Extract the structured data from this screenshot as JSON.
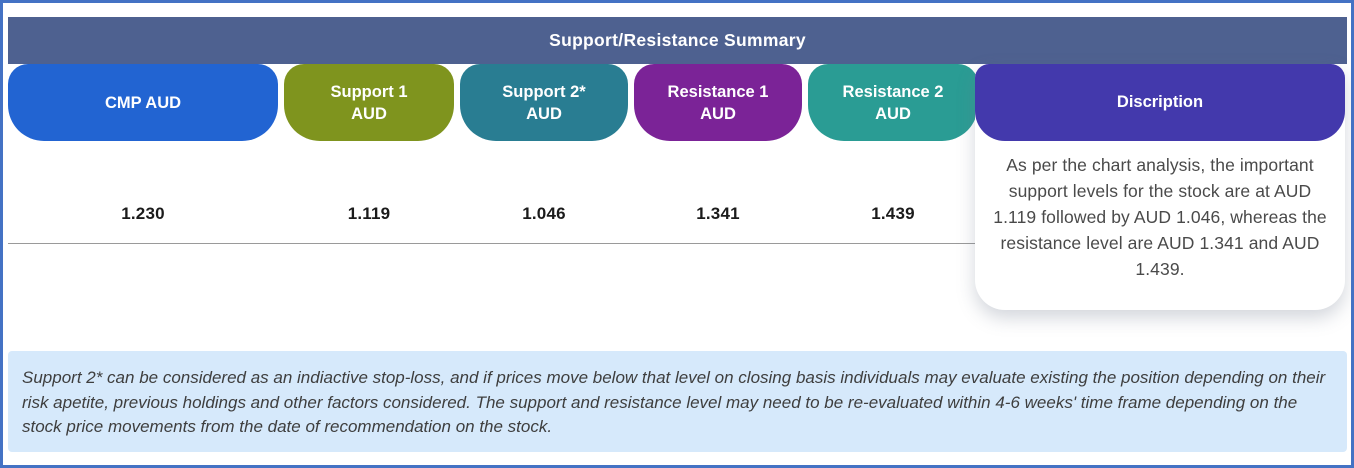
{
  "frame": {
    "border_color": "#4472C4"
  },
  "header": {
    "title": "Support/Resistance Summary",
    "bg": "#4E6190"
  },
  "columns": [
    {
      "id": "cmp",
      "line1": "CMP AUD",
      "line2": "",
      "value": "1.230",
      "color": "#2264D2"
    },
    {
      "id": "support1",
      "line1": "Support 1",
      "line2": "AUD",
      "value": "1.119",
      "color": "#7F941E"
    },
    {
      "id": "support2",
      "line1": "Support 2*",
      "line2": "AUD",
      "value": "1.046",
      "color": "#297D92"
    },
    {
      "id": "resistance1",
      "line1": "Resistance 1",
      "line2": "AUD",
      "value": "1.341",
      "color": "#7B2397"
    },
    {
      "id": "resistance2",
      "line1": "Resistance 2",
      "line2": "AUD",
      "value": "1.439",
      "color": "#2A9C94"
    }
  ],
  "description": {
    "header": "Discription",
    "header_bg": "#4339AC",
    "body": "As per the chart analysis, the important support levels for the stock are at AUD 1.119 followed by AUD 1.046, whereas the resistance level are AUD 1.341 and AUD 1.439."
  },
  "footnote": {
    "bg": "#D6E9FB",
    "text": "Support 2* can be considered as an indiactive stop-loss, and if prices move below that level on closing basis individuals may evaluate existing the position depending on their risk apetite, previous holdings and other factors considered. The support and resistance level may need to be re-evaluated within 4-6 weeks' time frame depending on the stock price movements from  the date of recommendation on the stock."
  },
  "chart_data": {
    "type": "table",
    "title": "Support/Resistance Summary",
    "columns": [
      "CMP AUD",
      "Support 1 AUD",
      "Support 2* AUD",
      "Resistance 1 AUD",
      "Resistance 2 AUD",
      "Discription"
    ],
    "rows": [
      [
        "1.230",
        "1.119",
        "1.046",
        "1.341",
        "1.439",
        "As per the chart analysis, the important support levels for the stock are at AUD 1.119 followed by AUD 1.046, whereas the resistance level are AUD 1.341 and AUD 1.439."
      ]
    ],
    "values": {
      "cmp_aud": 1.23,
      "support1_aud": 1.119,
      "support2_aud": 1.046,
      "resistance1_aud": 1.341,
      "resistance2_aud": 1.439
    }
  }
}
